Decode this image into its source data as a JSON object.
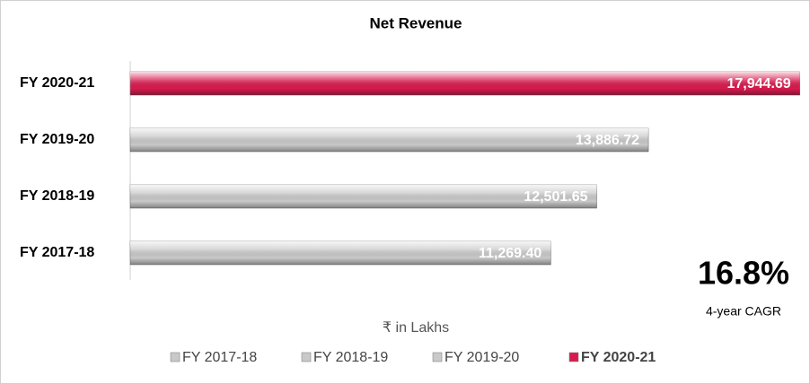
{
  "chart_data": {
    "type": "bar",
    "orientation": "horizontal",
    "title": "Net Revenue",
    "categories": [
      "FY 2017-18",
      "FY 2018-19",
      "FY 2019-20",
      "FY 2020-21"
    ],
    "values": [
      11269.4,
      12501.65,
      13886.72,
      17944.69
    ],
    "value_labels": [
      "11,269.40",
      "12,501.65",
      "13,886.72",
      "17,944.69"
    ],
    "colors": [
      "#c9c9c9",
      "#c9c9c9",
      "#c9c9c9",
      "#d81b4f"
    ],
    "xlim": [
      0,
      18000
    ],
    "x_label": "₹ in Lakhs",
    "annotations": [
      "16.8%",
      "4-year CAGR"
    ],
    "legend": "bottom"
  }
}
